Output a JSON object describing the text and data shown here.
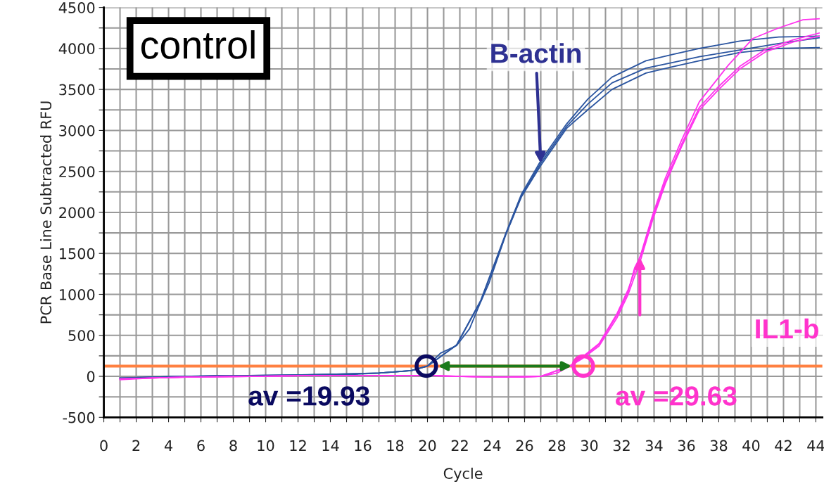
{
  "chart_data": {
    "type": "line",
    "xlabel": "Cycle",
    "ylabel": "PCR Base Line Subtracted RFU",
    "xlim": [
      0,
      44.4
    ],
    "ylim": [
      -500,
      4500
    ],
    "xticks": [
      0,
      {
        "value": 1,
        "label": null
      },
      2,
      {
        "value": 3,
        "label": null
      },
      4,
      {
        "value": 5,
        "label": null
      },
      6,
      {
        "value": 7,
        "label": null
      },
      8,
      {
        "value": 9,
        "label": null
      },
      10,
      {
        "value": 11,
        "label": null
      },
      12,
      {
        "value": 13,
        "label": null
      },
      14,
      {
        "value": 15,
        "label": null
      },
      16,
      {
        "value": 17,
        "label": null
      },
      18,
      {
        "value": 19,
        "label": null
      },
      20,
      {
        "value": 21,
        "label": null
      },
      22,
      {
        "value": 23,
        "label": null
      },
      24,
      {
        "value": 25,
        "label": null
      },
      26,
      {
        "value": 27,
        "label": null
      },
      28,
      {
        "value": 29,
        "label": null
      },
      30,
      {
        "value": 31,
        "label": null
      },
      32,
      {
        "value": 33,
        "label": null
      },
      34,
      {
        "value": 35,
        "label": null
      },
      36,
      {
        "value": 37,
        "label": null
      },
      38,
      {
        "value": 39,
        "label": null
      },
      40,
      {
        "value": 41,
        "label": null
      },
      42,
      {
        "value": 43,
        "label": null
      },
      44
    ],
    "yticks": [
      -500,
      {
        "value": -250,
        "label": null
      },
      0,
      {
        "value": 250,
        "label": null
      },
      500,
      {
        "value": 750,
        "label": null
      },
      1000,
      {
        "value": 1250,
        "label": null
      },
      1500,
      {
        "value": 1750,
        "label": null
      },
      2000,
      {
        "value": 2250,
        "label": null
      },
      2500,
      {
        "value": 2750,
        "label": null
      },
      3000,
      {
        "value": 3250,
        "label": null
      },
      3500,
      {
        "value": 3750,
        "label": null
      },
      4000,
      {
        "value": 4250,
        "label": null
      },
      4500
    ],
    "grid": true,
    "legend": false,
    "marker": "none",
    "line_style": "solid",
    "series": [
      {
        "color": "#2b55a0",
        "x": [
          1,
          3,
          5,
          7,
          9,
          11,
          13,
          15,
          17,
          19,
          20,
          20.8,
          21.8,
          22.6,
          23.3,
          23.8,
          24.85,
          25.8,
          27.0,
          28.6,
          29.9,
          31.4,
          33.5,
          35.2,
          36.8,
          39.3,
          41.7,
          44.2
        ],
        "values": [
          -30,
          -10,
          0,
          10,
          0,
          10,
          20,
          20,
          40,
          70,
          125,
          282,
          376,
          581,
          914,
          1137,
          1735,
          2188,
          2573,
          3026,
          3250,
          3500,
          3700,
          3780,
          3850,
          3950,
          4000,
          4010
        ]
      },
      {
        "color": "#2b55a0",
        "x": [
          1,
          5,
          9,
          13,
          17,
          19,
          20,
          21.8,
          23.3,
          24.85,
          25.8,
          27.0,
          28.6,
          29.9,
          31.4,
          33.5,
          35.2,
          36.8,
          39.3,
          41.7,
          44.2
        ],
        "values": [
          -20,
          0,
          10,
          20,
          40,
          70,
          125,
          380,
          920,
          1740,
          2200,
          2600,
          3050,
          3320,
          3580,
          3760,
          3830,
          3900,
          3980,
          4060,
          4130
        ]
      },
      {
        "color": "#2b55a0",
        "x": [
          1,
          5,
          9,
          13,
          17,
          19,
          20,
          21.8,
          23.3,
          24.85,
          25.8,
          27.0,
          28.6,
          29.9,
          31.4,
          33.5,
          35.2,
          36.8,
          39.3,
          41.7,
          44.2
        ],
        "values": [
          -20,
          0,
          10,
          20,
          40,
          70,
          125,
          385,
          930,
          1750,
          2220,
          2630,
          3080,
          3380,
          3650,
          3850,
          3930,
          4000,
          4090,
          4140,
          4150
        ]
      },
      {
        "color": "#ff33ee",
        "x": [
          1,
          3,
          5,
          9,
          13,
          17,
          20,
          22,
          24,
          26,
          27,
          28,
          28.8,
          29.6,
          30.6,
          31.7,
          32.4,
          32.8,
          33.2,
          33.9,
          34.7,
          35.7,
          36.8,
          38.0,
          39.3,
          40.9,
          42.6,
          44.2
        ],
        "values": [
          -40,
          -20,
          -10,
          0,
          10,
          10,
          10,
          0,
          -10,
          -10,
          0,
          40,
          125,
          231,
          390,
          744,
          1034,
          1325,
          1478,
          1932,
          2376,
          2830,
          3282,
          3538,
          3782,
          3991,
          4105,
          4188
        ]
      },
      {
        "color": "#ff33ee",
        "x": [
          1,
          5,
          9,
          13,
          17,
          20,
          24,
          27,
          28.8,
          29.6,
          30.6,
          31.7,
          32.4,
          33.2,
          33.9,
          34.7,
          35.7,
          36.8,
          38.0,
          39.3,
          40.9,
          42.6,
          44.2
        ],
        "values": [
          -30,
          -10,
          0,
          10,
          10,
          10,
          -10,
          0,
          125,
          220,
          370,
          710,
          1000,
          1440,
          1900,
          2350,
          2800,
          3250,
          3500,
          3750,
          3960,
          4080,
          4150
        ]
      },
      {
        "color": "#ff33ee",
        "x": [
          1,
          5,
          9,
          13,
          17,
          20,
          24,
          27,
          28.8,
          29.6,
          30.6,
          31.7,
          32.4,
          33.2,
          33.9,
          34.7,
          35.7,
          36.8,
          38.6,
          40.1,
          41.7,
          43.2,
          44.2
        ],
        "values": [
          -30,
          -10,
          0,
          10,
          10,
          10,
          -10,
          0,
          125,
          240,
          400,
          760,
          1060,
          1500,
          1960,
          2420,
          2880,
          3350,
          3798,
          4121,
          4250,
          4350,
          4363
        ]
      }
    ],
    "ref_lines": [
      {
        "axis": "y",
        "value": 125,
        "color": "#ff8040"
      }
    ],
    "annotations": [
      "control",
      {
        "text": "B-actin",
        "x": 27.0,
        "y": 2600
      },
      "IL1-b",
      {
        "text": "av =19.93",
        "x": 19.93,
        "y": 125
      },
      {
        "text": "av =29.63",
        "x": 29.63,
        "y": 125
      }
    ]
  }
}
